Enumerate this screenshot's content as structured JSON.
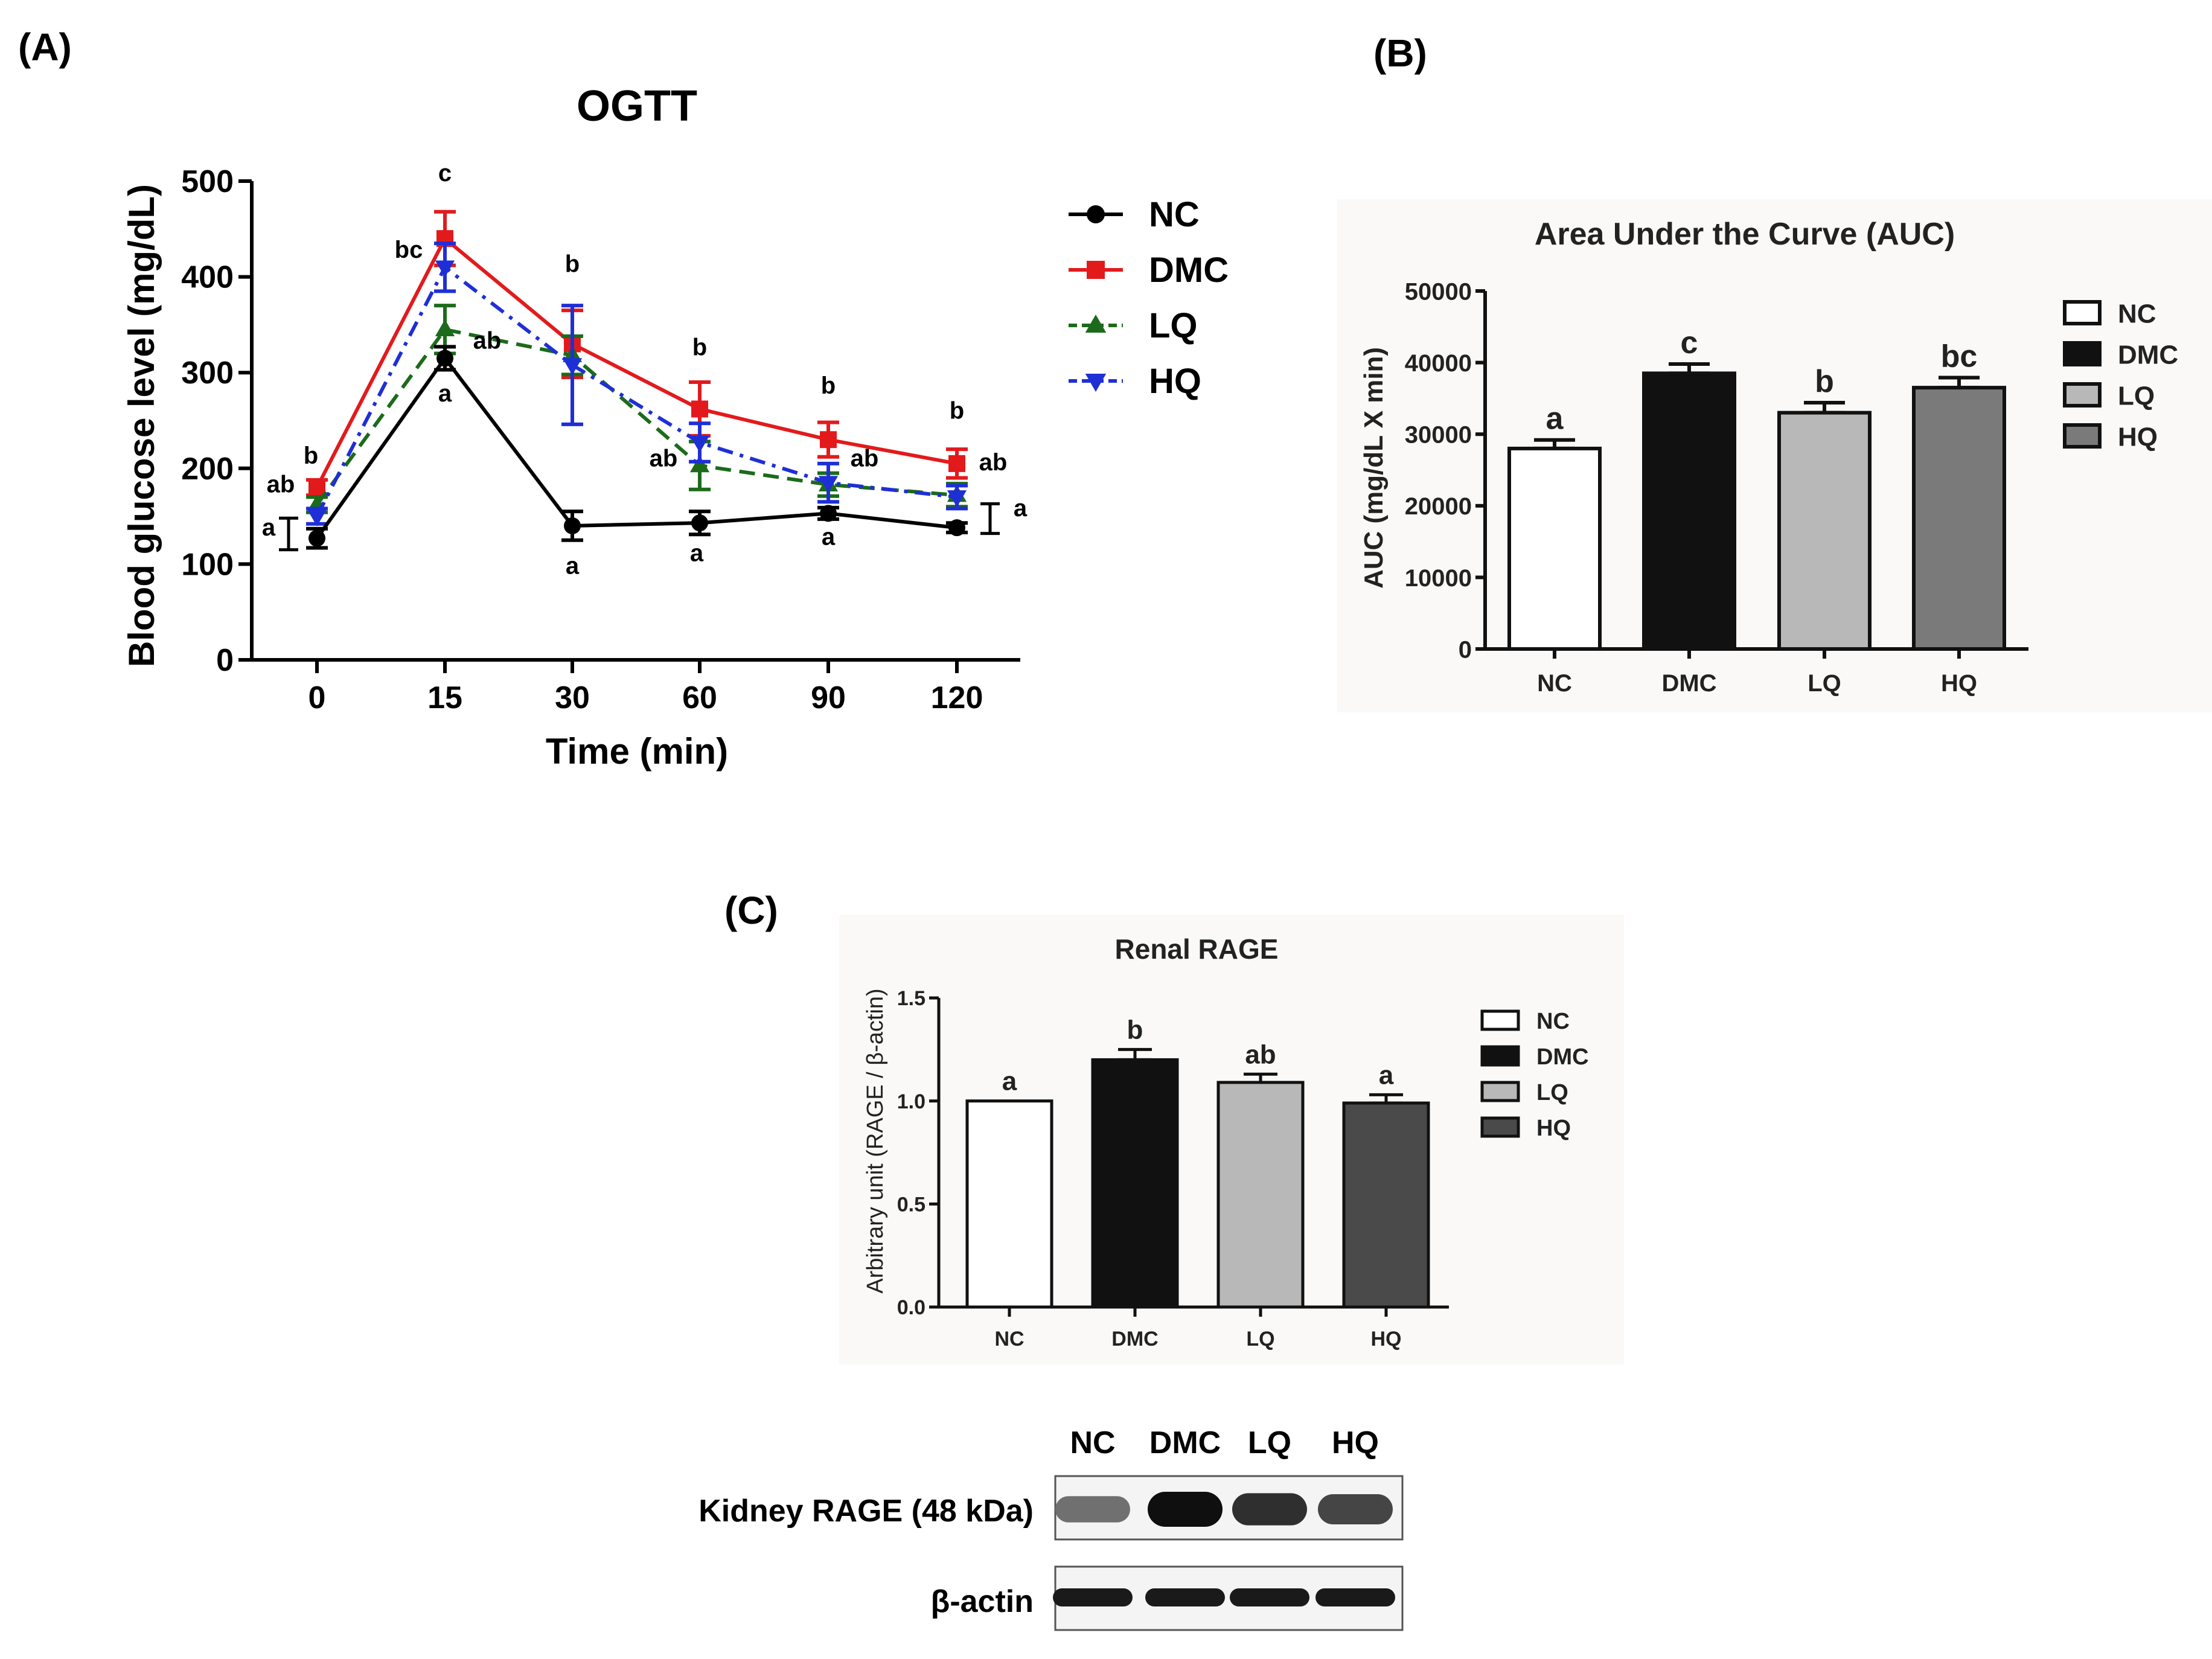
{
  "panel_labels": {
    "a": "(A)",
    "b": "(B)",
    "c": "(C)"
  },
  "colors": {
    "NC": "#000000",
    "DMC": "#e31a1c",
    "LQ": "#1b6b1b",
    "HQ": "#1f2fd6",
    "bar_NC": "#ffffff",
    "bar_DMC": "#111111",
    "bar_LQ": "#b8b8b8",
    "bar_HQ": "#7a7a7a",
    "bar_HQ_C": "#4a4a4a"
  },
  "chart_data": [
    {
      "id": "ogtt",
      "type": "line",
      "title": "OGTT",
      "xlabel": "Time (min)",
      "ylabel": "Blood glucose level (mg/dL)",
      "categories": [
        "0",
        "15",
        "30",
        "60",
        "90",
        "120"
      ],
      "ylim": [
        0,
        500
      ],
      "yticks": [
        "0",
        "100",
        "200",
        "300",
        "400",
        "500"
      ],
      "series": [
        {
          "name": "NC",
          "marker": "circle",
          "dash": "solid",
          "values": [
            127,
            315,
            140,
            143,
            153,
            138
          ],
          "errors": [
            10,
            12,
            15,
            12,
            6,
            5
          ]
        },
        {
          "name": "DMC",
          "marker": "square",
          "dash": "solid",
          "values": [
            180,
            440,
            330,
            262,
            230,
            205
          ],
          "errors": [
            8,
            28,
            35,
            28,
            18,
            15
          ]
        },
        {
          "name": "LQ",
          "marker": "triangle-up",
          "dash": "dashed",
          "values": [
            162,
            345,
            318,
            203,
            183,
            172
          ],
          "errors": [
            8,
            25,
            20,
            25,
            12,
            12
          ]
        },
        {
          "name": "HQ",
          "marker": "triangle-down",
          "dash": "dashdot",
          "values": [
            150,
            410,
            308,
            227,
            185,
            170
          ],
          "errors": [
            8,
            25,
            62,
            20,
            20,
            12
          ]
        }
      ],
      "annotations": [
        {
          "cat": 0,
          "value": 205,
          "text": "b"
        },
        {
          "cat": 0,
          "value": 175,
          "text": "ab"
        },
        {
          "cat": 0,
          "value": 130,
          "text": "a"
        },
        {
          "cat": 1,
          "value": 500,
          "text": "c"
        },
        {
          "cat": 1,
          "value": 420,
          "text": "bc"
        },
        {
          "cat": 1,
          "value": 325,
          "text": "ab"
        },
        {
          "cat": 1,
          "value": 270,
          "text": "a"
        },
        {
          "cat": 2,
          "value": 405,
          "text": "b"
        },
        {
          "cat": 2,
          "value": 90,
          "text": "a"
        },
        {
          "cat": 3,
          "value": 318,
          "text": "b"
        },
        {
          "cat": 3,
          "value": 202,
          "text": "ab"
        },
        {
          "cat": 3,
          "value": 103,
          "text": "a"
        },
        {
          "cat": 4,
          "value": 278,
          "text": "b"
        },
        {
          "cat": 4,
          "value": 202,
          "text": "ab"
        },
        {
          "cat": 4,
          "value": 120,
          "text": "a"
        },
        {
          "cat": 5,
          "value": 252,
          "text": "b"
        },
        {
          "cat": 5,
          "value": 198,
          "text": "ab"
        },
        {
          "cat": 5,
          "value": 150,
          "text": "a"
        }
      ],
      "legend": {
        "position": "right",
        "entries": [
          "NC",
          "DMC",
          "LQ",
          "HQ"
        ]
      }
    },
    {
      "id": "auc",
      "type": "bar",
      "title": "Area Under the Curve (AUC)",
      "xlabel": "",
      "ylabel": "AUC (mg/dL X min)",
      "categories": [
        "NC",
        "DMC",
        "LQ",
        "HQ"
      ],
      "values": [
        28000,
        38500,
        33000,
        36500
      ],
      "errors": [
        1200,
        1300,
        1400,
        1400
      ],
      "letters": [
        "a",
        "c",
        "b",
        "bc"
      ],
      "ylim": [
        0,
        50000
      ],
      "yticks": [
        "0",
        "10000",
        "20000",
        "30000",
        "40000",
        "50000"
      ],
      "legend": {
        "position": "right",
        "entries": [
          "NC",
          "DMC",
          "LQ",
          "HQ"
        ]
      }
    },
    {
      "id": "rage",
      "type": "bar",
      "title": "Renal RAGE",
      "xlabel": "",
      "ylabel": "Arbitrary unit (RAGE / β-actin)",
      "categories": [
        "NC",
        "DMC",
        "LQ",
        "HQ"
      ],
      "values": [
        1.0,
        1.2,
        1.09,
        0.99
      ],
      "errors": [
        0.0,
        0.05,
        0.04,
        0.04
      ],
      "letters": [
        "a",
        "b",
        "ab",
        "a"
      ],
      "ylim": [
        0,
        1.5
      ],
      "yticks": [
        "0.0",
        "0.5",
        "1.0",
        "1.5"
      ],
      "legend": {
        "position": "right",
        "entries": [
          "NC",
          "DMC",
          "LQ",
          "HQ"
        ]
      }
    }
  ],
  "blot": {
    "lanes": [
      "NC",
      "DMC",
      "LQ",
      "HQ"
    ],
    "rage_label": "Kidney RAGE (48 kDa)",
    "actin_label": "β-actin",
    "rage_intensity": [
      0.55,
      1.0,
      0.85,
      0.75
    ],
    "actin_intensity": [
      0.95,
      0.95,
      0.95,
      0.95
    ]
  }
}
